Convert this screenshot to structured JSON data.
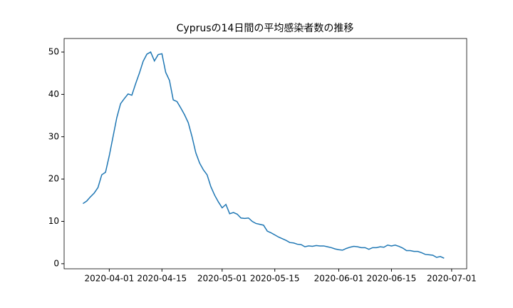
{
  "chart_data": {
    "type": "line",
    "title": "Cyprusの14日間の平均感染者数の推移",
    "x": [
      "2020-03-25",
      "2020-03-26",
      "2020-03-27",
      "2020-03-28",
      "2020-03-29",
      "2020-03-30",
      "2020-03-31",
      "2020-04-01",
      "2020-04-02",
      "2020-04-03",
      "2020-04-04",
      "2020-04-05",
      "2020-04-06",
      "2020-04-07",
      "2020-04-08",
      "2020-04-09",
      "2020-04-10",
      "2020-04-11",
      "2020-04-12",
      "2020-04-13",
      "2020-04-14",
      "2020-04-15",
      "2020-04-16",
      "2020-04-17",
      "2020-04-18",
      "2020-04-19",
      "2020-04-20",
      "2020-04-21",
      "2020-04-22",
      "2020-04-23",
      "2020-04-24",
      "2020-04-25",
      "2020-04-26",
      "2020-04-27",
      "2020-04-28",
      "2020-04-29",
      "2020-04-30",
      "2020-05-01",
      "2020-05-02",
      "2020-05-03",
      "2020-05-04",
      "2020-05-05",
      "2020-05-06",
      "2020-05-07",
      "2020-05-08",
      "2020-05-09",
      "2020-05-10",
      "2020-05-11",
      "2020-05-12",
      "2020-05-13",
      "2020-05-14",
      "2020-05-15",
      "2020-05-16",
      "2020-05-17",
      "2020-05-18",
      "2020-05-19",
      "2020-05-20",
      "2020-05-21",
      "2020-05-22",
      "2020-05-23",
      "2020-05-24",
      "2020-05-25",
      "2020-05-26",
      "2020-05-27",
      "2020-05-28",
      "2020-05-29",
      "2020-05-30",
      "2020-05-31",
      "2020-06-01",
      "2020-06-02",
      "2020-06-03",
      "2020-06-04",
      "2020-06-05",
      "2020-06-06",
      "2020-06-07",
      "2020-06-08",
      "2020-06-09",
      "2020-06-10",
      "2020-06-11",
      "2020-06-12",
      "2020-06-13",
      "2020-06-14",
      "2020-06-15",
      "2020-06-16",
      "2020-06-17",
      "2020-06-18",
      "2020-06-19",
      "2020-06-20",
      "2020-06-21",
      "2020-06-22",
      "2020-06-23",
      "2020-06-24",
      "2020-06-25",
      "2020-06-26",
      "2020-06-27",
      "2020-06-28",
      "2020-06-29"
    ],
    "series": [
      {
        "name": null,
        "color": "#1f77b4",
        "values": [
          14.2,
          14.8,
          15.8,
          16.7,
          18.0,
          21.0,
          21.6,
          25.5,
          30,
          34.5,
          37.8,
          39,
          40.1,
          39.8,
          42.5,
          45,
          47.8,
          49.5,
          50,
          47.9,
          49.4,
          49.6,
          45.2,
          43.3,
          38.7,
          38.3,
          36.8,
          35.2,
          33.3,
          30,
          26.2,
          23.8,
          22.2,
          21,
          18.2,
          16.2,
          14.6,
          13.2,
          14,
          11.8,
          12.1,
          11.7,
          10.8,
          10.7,
          10.8,
          10,
          9.5,
          9.3,
          9.1,
          7.7,
          7.3,
          6.8,
          6.3,
          5.9,
          5.5,
          5,
          4.9,
          4.6,
          4.5,
          4.0,
          4.2,
          4.1,
          4.3,
          4.2,
          4.2,
          4.0,
          3.8,
          3.5,
          3.3,
          3.2,
          3.6,
          3.9,
          4.1,
          4.0,
          3.8,
          3.8,
          3.4,
          3.8,
          3.8,
          4.0,
          3.9,
          4.4,
          4.2,
          4.4,
          4.1,
          3.7,
          3.1,
          3.1,
          2.9,
          2.9,
          2.6,
          2.2,
          2.1,
          2.0,
          1.5,
          1.7,
          1.3
        ]
      }
    ],
    "xlim": [
      "2020-03-20",
      "2020-07-05"
    ],
    "xticks": [
      "2020-04-01",
      "2020-04-15",
      "2020-05-01",
      "2020-05-15",
      "2020-06-01",
      "2020-06-15",
      "2020-07-01"
    ],
    "ylim": [
      -1.2,
      53.2
    ],
    "yticks": [
      0,
      10,
      20,
      30,
      40,
      50
    ],
    "grid": false
  }
}
